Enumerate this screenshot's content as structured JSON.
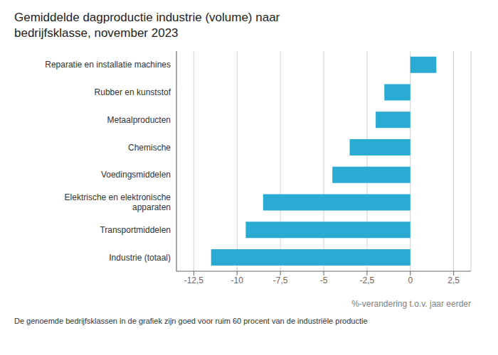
{
  "chart_data": {
    "type": "bar",
    "title": "Gemiddelde dagproductie industrie (volume) naar\nbedrijfsklasse, november 2023",
    "orientation": "horizontal",
    "categories": [
      "Industrie (totaal)",
      "Transportmiddelen",
      "Elektrische en elektronische\napparaten",
      "Voedingsmiddelen",
      "Chemische",
      "Metaalproducten",
      "Rubber en kunststof",
      "Reparatie en installatie machines"
    ],
    "values": [
      -11.5,
      -9.5,
      -8.5,
      -4.5,
      -3.5,
      -2.0,
      -1.5,
      1.5
    ],
    "color": "#29ABD4",
    "xlim": [
      -13.5,
      3.5
    ],
    "xticks": [
      {
        "value": -12.5,
        "label": "-12,5"
      },
      -10,
      {
        "value": -7.5,
        "label": "-7,5"
      },
      -5,
      {
        "value": -2.5,
        "label": "-2,5"
      },
      0,
      {
        "value": 2.5,
        "label": "2,5"
      }
    ],
    "xlabel": "%-verandering t.o.v. jaar eerder",
    "grid": true,
    "annotations": [
      "De genoemde bedrijfsklassen in de grafiek zijn goed voor ruim 60 procent van de industriële productie"
    ]
  }
}
